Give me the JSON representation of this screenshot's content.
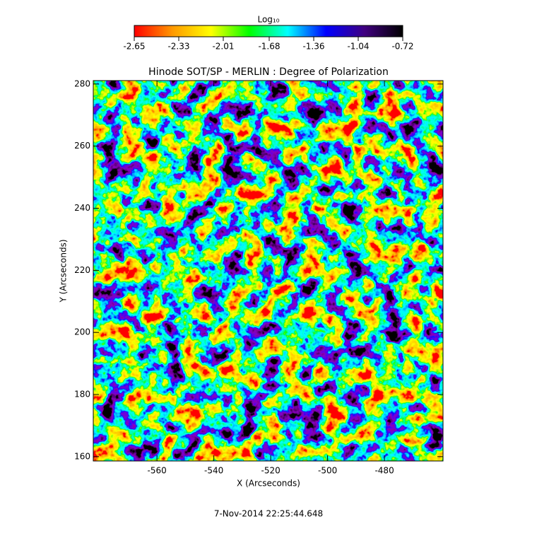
{
  "chart_data": {
    "type": "image",
    "title": "Hinode SOT/SP - MERLIN : Degree of Polarization",
    "x_label": "X (Arcseconds)",
    "y_label": "Y (Arcseconds)",
    "xlim": [
      -582.4,
      -459.4
    ],
    "ylim": [
      158.6,
      281.1
    ],
    "xticks": [
      -560,
      -540,
      -520,
      -500,
      -480
    ],
    "yticks": [
      160,
      180,
      200,
      220,
      240,
      260,
      280
    ],
    "colorbar": {
      "label": "Log₁₀",
      "clim": [
        -2.65,
        -0.72
      ],
      "ticks": [
        -2.65,
        -2.33,
        -2.01,
        -1.68,
        -1.36,
        -1.04,
        -0.72
      ],
      "colormap": [
        "#ff0000",
        "#ff9900",
        "#ffff00",
        "#00ff00",
        "#00ffff",
        "#0000ff",
        "#400080",
        "#000000"
      ]
    },
    "timestamp": "7-Nov-2014 22:25:44.648"
  }
}
